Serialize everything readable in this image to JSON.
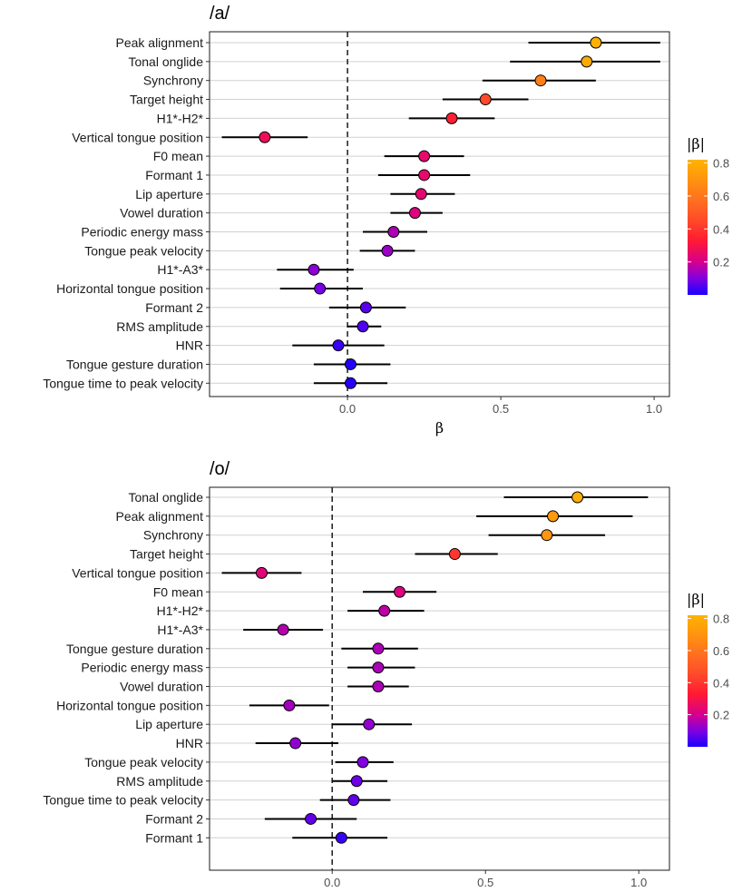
{
  "chart_data": [
    {
      "type": "scatter",
      "title": "/a/",
      "xlabel": "β",
      "xlim": [
        -0.45,
        1.05
      ],
      "xticks": [
        0.0,
        0.5,
        1.0
      ],
      "xtick_labels": [
        "0.0",
        "0.5",
        "1.0"
      ],
      "reference_line": 0,
      "legend": {
        "title": "|β|",
        "ticks": [
          0.2,
          0.4,
          0.6,
          0.8
        ],
        "tick_labels": [
          "0.2",
          "0.4",
          "0.6",
          "0.8"
        ],
        "range": [
          0,
          0.82
        ],
        "position": "right"
      },
      "categories": [
        "Peak alignment",
        "Tonal onglide",
        "Synchrony",
        "Target height",
        "H1*-H2*",
        "Vertical tongue position",
        "F0 mean",
        "Formant 1",
        "Lip aperture",
        "Vowel duration",
        "Periodic energy mass",
        "Tongue peak velocity",
        "H1*-A3*",
        "Horizontal tongue position",
        "Formant 2",
        "RMS amplitude",
        "HNR",
        "Tongue gesture duration",
        "Tongue time to peak velocity"
      ],
      "estimates": [
        0.81,
        0.78,
        0.63,
        0.45,
        0.34,
        -0.27,
        0.25,
        0.25,
        0.24,
        0.22,
        0.15,
        0.13,
        -0.11,
        -0.09,
        0.06,
        0.05,
        -0.03,
        0.01,
        0.01
      ],
      "lower": [
        0.59,
        0.53,
        0.44,
        0.31,
        0.2,
        -0.41,
        0.12,
        0.1,
        0.14,
        0.14,
        0.05,
        0.04,
        -0.23,
        -0.22,
        -0.06,
        0.0,
        -0.18,
        -0.11,
        -0.11
      ],
      "upper": [
        1.02,
        1.02,
        0.81,
        0.59,
        0.48,
        -0.13,
        0.38,
        0.4,
        0.35,
        0.31,
        0.26,
        0.22,
        0.02,
        0.05,
        0.19,
        0.11,
        0.12,
        0.14,
        0.13
      ]
    },
    {
      "type": "scatter",
      "title": "/o/",
      "xlabel": "β",
      "xlim": [
        -0.4,
        1.1
      ],
      "xticks": [
        0.0,
        0.5,
        1.0
      ],
      "xtick_labels": [
        "0.0",
        "0.5",
        "1.0"
      ],
      "reference_line": 0,
      "legend": {
        "title": "|β|",
        "ticks": [
          0.2,
          0.4,
          0.6,
          0.8
        ],
        "tick_labels": [
          "0.2",
          "0.4",
          "0.6",
          "0.8"
        ],
        "range": [
          0,
          0.82
        ],
        "position": "right"
      },
      "categories": [
        "Tonal onglide",
        "Peak alignment",
        "Synchrony",
        "Target height",
        "Vertical tongue position",
        "F0 mean",
        "H1*-H2*",
        "H1*-A3*",
        "Tongue gesture duration",
        "Periodic energy mass",
        "Vowel duration",
        "Horizontal tongue position",
        "Lip aperture",
        "HNR",
        "Tongue peak velocity",
        "RMS amplitude",
        "Tongue time to peak velocity",
        "Formant 2",
        "Formant 1"
      ],
      "estimates": [
        0.8,
        0.72,
        0.7,
        0.4,
        -0.23,
        0.22,
        0.17,
        -0.16,
        0.15,
        0.15,
        0.15,
        -0.14,
        0.12,
        -0.12,
        0.1,
        0.08,
        0.07,
        -0.07,
        0.03
      ],
      "lower": [
        0.56,
        0.47,
        0.51,
        0.27,
        -0.36,
        0.1,
        0.05,
        -0.29,
        0.03,
        0.05,
        0.05,
        -0.27,
        0.0,
        -0.25,
        0.01,
        0.0,
        -0.04,
        -0.22,
        -0.13
      ],
      "upper": [
        1.03,
        0.98,
        0.89,
        0.54,
        -0.1,
        0.34,
        0.3,
        -0.03,
        0.28,
        0.27,
        0.25,
        -0.01,
        0.26,
        0.02,
        0.2,
        0.18,
        0.19,
        0.08,
        0.18
      ]
    }
  ]
}
